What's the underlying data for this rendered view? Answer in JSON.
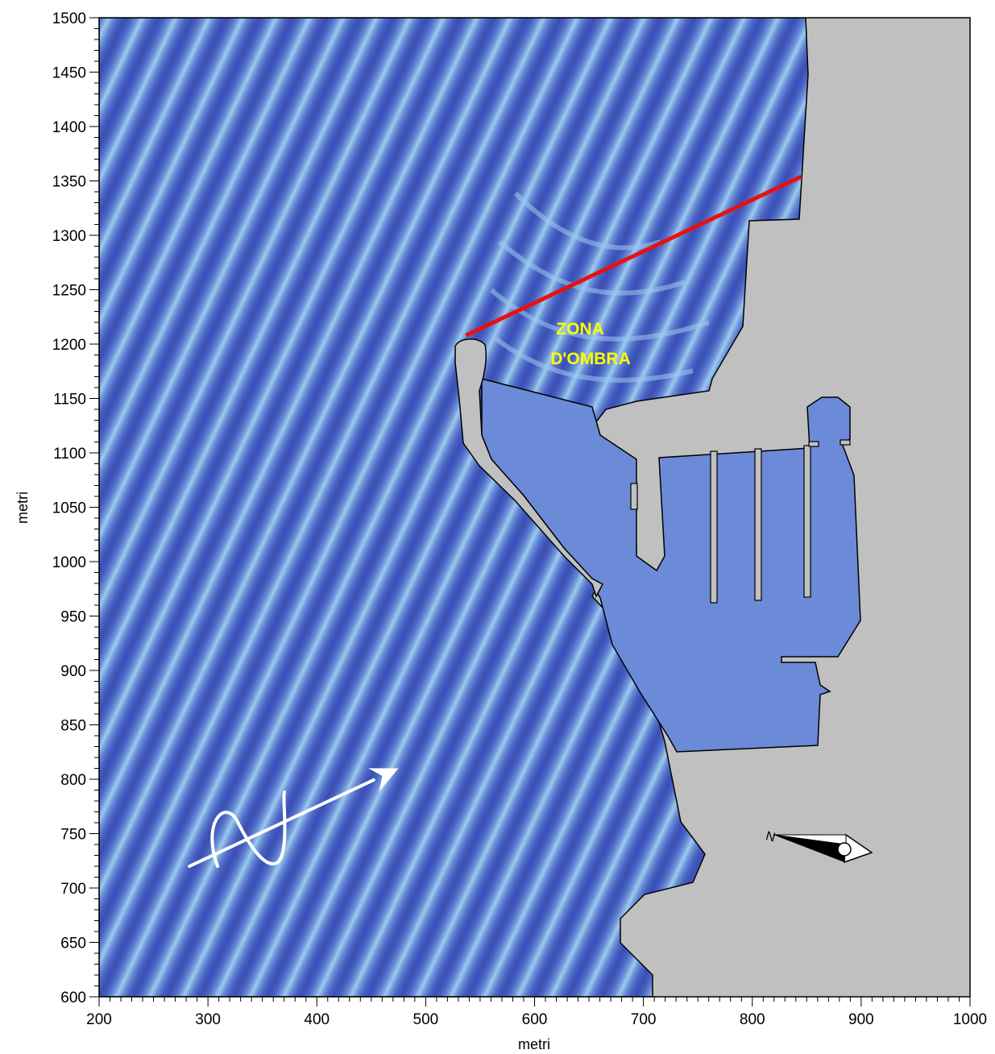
{
  "figure": {
    "xlabel": "metri",
    "ylabel": "metri",
    "xlim": [
      200,
      1000
    ],
    "ylim": [
      600,
      1500
    ],
    "x_ticks": [
      200,
      300,
      400,
      500,
      600,
      700,
      800,
      900,
      1000
    ],
    "y_ticks": [
      600,
      650,
      700,
      750,
      800,
      850,
      900,
      950,
      1000,
      1050,
      1100,
      1150,
      1200,
      1250,
      1300,
      1350,
      1400,
      1450,
      1500
    ],
    "grid": false
  },
  "annotations": {
    "shadow_zone_line1": "ZONA",
    "shadow_zone_line2": "D'OMBRA",
    "shadow_zone_boundary": {
      "from": [
        537,
        1208
      ],
      "to": [
        845,
        1354
      ]
    },
    "wave_direction": {
      "from": [
        283,
        720
      ],
      "to": [
        475,
        810
      ]
    },
    "north_arrow_label": "N"
  },
  "colors": {
    "land": "#c0c0c0",
    "wave_dark": "#3a4fb4",
    "wave_mid": "#6a8fd6",
    "wave_light": "#9cc9ef",
    "harbor_water": "#6b8ad8",
    "boundary_line": "#e81010",
    "label": "#ffff00",
    "arrow": "#ffffff"
  },
  "icons": {
    "wave_direction": "arrow-with-sine-wave-icon",
    "compass": "north-arrow-icon"
  }
}
